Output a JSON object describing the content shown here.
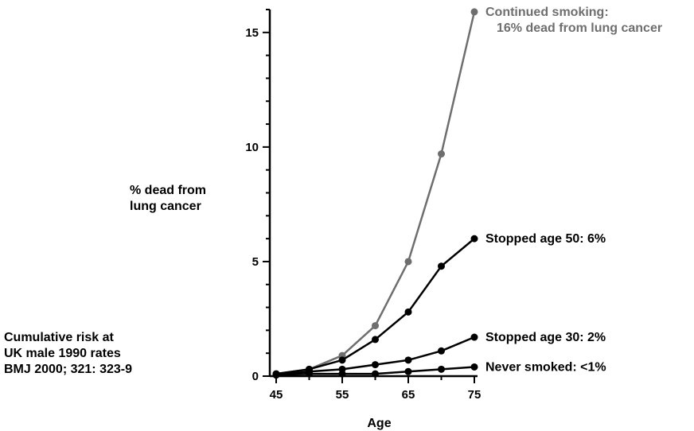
{
  "chart_data": {
    "type": "line",
    "title": "",
    "xlabel": "Age",
    "ylabel_lines": [
      "% dead from",
      "lung cancer"
    ],
    "x": [
      45,
      50,
      55,
      60,
      65,
      70,
      75
    ],
    "xlim": [
      45,
      75
    ],
    "ylim": [
      0,
      16
    ],
    "xticks": [
      45,
      55,
      65,
      75
    ],
    "yticks": [
      0,
      5,
      10,
      15
    ],
    "grid": false,
    "legend": "none",
    "series": [
      {
        "values": [
          0.1,
          0.3,
          0.9,
          2.2,
          5.0,
          9.7,
          15.9
        ],
        "color": "#6e6e6e",
        "end_label_lines": [
          "Continued smoking:",
          "16% dead from lung cancer"
        ]
      },
      {
        "values": [
          0.1,
          0.3,
          0.7,
          1.6,
          2.8,
          4.8,
          6.0
        ],
        "color": "#000000",
        "end_label_lines": [
          "Stopped age 50:  6%"
        ]
      },
      {
        "values": [
          0.05,
          0.2,
          0.3,
          0.5,
          0.7,
          1.1,
          1.7
        ],
        "color": "#000000",
        "end_label_lines": [
          "Stopped age 30:  2%"
        ]
      },
      {
        "values": [
          0.05,
          0.1,
          0.1,
          0.1,
          0.2,
          0.3,
          0.4
        ],
        "color": "#000000",
        "end_label_lines": [
          "Never smoked:  <1%"
        ]
      }
    ]
  },
  "note": {
    "line1": "Cumulative risk at",
    "line2": "UK male 1990 rates",
    "line3": "BMJ 2000; 321: 323-9"
  }
}
